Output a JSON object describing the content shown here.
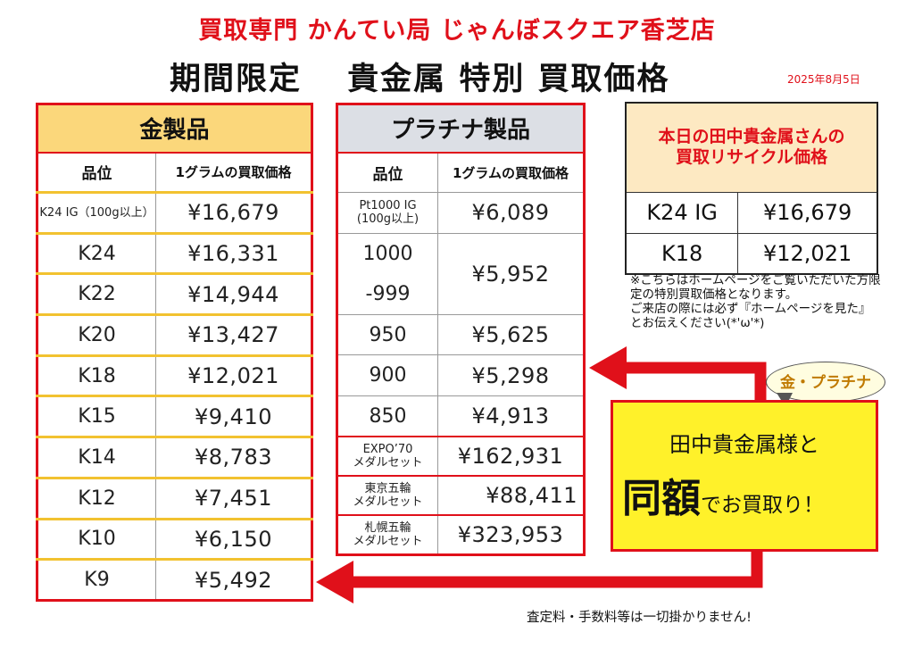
{
  "header": {
    "shop": "買取専門 かんてい局 じゃんぼスクエア香芝店",
    "title": "期間限定　 貴金属 特別 買取価格",
    "date": "2025年8月5日"
  },
  "gold": {
    "title": "金製品",
    "col_grade": "品位",
    "col_price": "1グラムの買取価格",
    "rows": [
      {
        "grade": "K24 IG（100g以上）",
        "price": "¥16,679"
      },
      {
        "grade": "K24",
        "price": "¥16,331"
      },
      {
        "grade": "K22",
        "price": "¥14,944"
      },
      {
        "grade": "K20",
        "price": "¥13,427"
      },
      {
        "grade": "K18",
        "price": "¥12,021"
      },
      {
        "grade": "K15",
        "price": "¥9,410"
      },
      {
        "grade": "K14",
        "price": "¥8,783"
      },
      {
        "grade": "K12",
        "price": "¥7,451"
      },
      {
        "grade": "K10",
        "price": "¥6,150"
      },
      {
        "grade": "K9",
        "price": "¥5,492"
      }
    ]
  },
  "platinum": {
    "title": "プラチナ製品",
    "col_grade": "品位",
    "col_price": "1グラムの買取価格",
    "rows": [
      {
        "grade_1": "Pt1000 IG",
        "grade_2": "(100g以上)",
        "price": "¥6,089"
      },
      {
        "grade_1": "1000",
        "grade_2": "-999",
        "price": "¥5,952"
      },
      {
        "grade": "950",
        "price": "¥5,625"
      },
      {
        "grade": "900",
        "price": "¥5,298"
      },
      {
        "grade": "850",
        "price": "¥4,913"
      }
    ],
    "medals": [
      {
        "name_1": "EXPO’70",
        "name_2": "メダルセット",
        "price": "¥162,931"
      },
      {
        "name_1": "東京五輪",
        "name_2": "メダルセット",
        "price": "¥88,411"
      },
      {
        "name_1": "札幌五輪",
        "name_2": "メダルセット",
        "price": "¥323,953"
      }
    ]
  },
  "recycle": {
    "title_1": "本日の田中貴金属さんの",
    "title_2": "買取リサイクル価格",
    "rows": [
      {
        "grade": "K24 IG",
        "price": "¥16,679"
      },
      {
        "grade": "K18",
        "price": "¥12,021"
      }
    ]
  },
  "note": {
    "line1": "※こちらはホームページをご覧いただいた方限定の特別買取価格となります。",
    "line2": "ご来店の際には必ず『ホームページを見た』とお伝えください(*'ω'*)"
  },
  "bubble": "金・プラチナ",
  "promo": {
    "line1": "田中貴金属様と",
    "big": "同額",
    "rest": "でお買取り！"
  },
  "footer": "査定料・手数料等は一切掛かりません!",
  "colors": {
    "accent_red": "#e0101a",
    "gold_header": "#fbd77b",
    "plat_header": "#dcdfe5",
    "promo_yellow": "#fff12a"
  }
}
